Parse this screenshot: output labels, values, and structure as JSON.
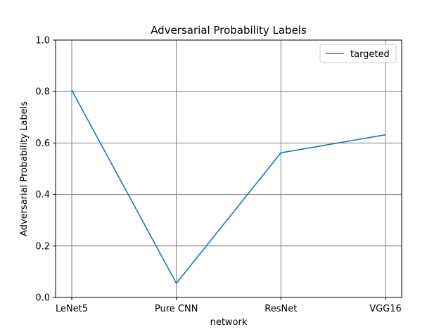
{
  "chart_data": {
    "type": "line",
    "title": "Adversarial Probability Labels",
    "xlabel": "network",
    "ylabel": "Adversarial Probability Labels",
    "categories": [
      "LeNet5",
      "Pure CNN",
      "ResNet",
      "VGG16"
    ],
    "ylim": [
      0.0,
      1.0
    ],
    "yticks": [
      "0.0",
      "0.2",
      "0.4",
      "0.6",
      "0.8",
      "1.0"
    ],
    "grid": true,
    "legend_position": "top-right",
    "series": [
      {
        "name": "targeted",
        "color": "#1f77b4",
        "values": [
          0.805,
          0.055,
          0.562,
          0.632
        ]
      }
    ]
  }
}
